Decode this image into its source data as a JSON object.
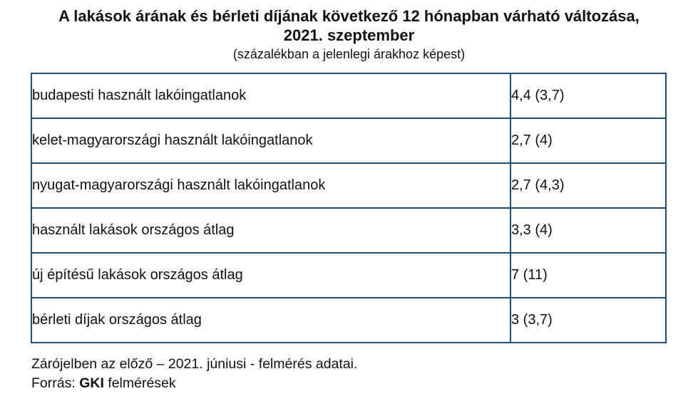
{
  "title": {
    "line1": "A lakások árának és bérleti díjának következő 12 hónapban várható változása,",
    "line2": "2021. szeptember",
    "subtitle": "(százalékban a jelenlegi árakhoz képest)"
  },
  "chart_data": {
    "type": "table",
    "title": "A lakások árának és bérleti díjának következő 12 hónapban várható változása, 2021. szeptember",
    "subtitle": "(százalékban a jelenlegi árakhoz képest)",
    "unit": "percent, expected change vs current prices; value in parentheses = previous (June 2021) survey",
    "rows": [
      {
        "label": "budapesti használt lakóingatlanok",
        "current": 4.4,
        "previous": 3.7,
        "value_display": "4,4 (3,7)"
      },
      {
        "label": "kelet-magyarországi használt lakóingatlanok",
        "current": 2.7,
        "previous": 4,
        "value_display": "2,7 (4)"
      },
      {
        "label": "nyugat-magyarországi használt lakóingatlanok",
        "current": 2.7,
        "previous": 4.3,
        "value_display": "2,7 (4,3)"
      },
      {
        "label": "használt lakások országos átlag",
        "current": 3.3,
        "previous": 4,
        "value_display": "3,3 (4)"
      },
      {
        "label": "új építésű lakások országos átlag",
        "current": 7,
        "previous": 11,
        "value_display": "7 (11)"
      },
      {
        "label": "bérleti díjak országos átlag",
        "current": 3,
        "previous": 3.7,
        "value_display": "3 (3,7)"
      }
    ]
  },
  "footer": {
    "note": "Zárójelben az előző – 2021. júniusi - felmérés adatai.",
    "source_prefix": "Forrás:",
    "source_name": "GKI",
    "source_suffix": "felmérések"
  },
  "colors": {
    "table_border": "#1F4E79",
    "text": "#111111",
    "background": "#ffffff"
  }
}
